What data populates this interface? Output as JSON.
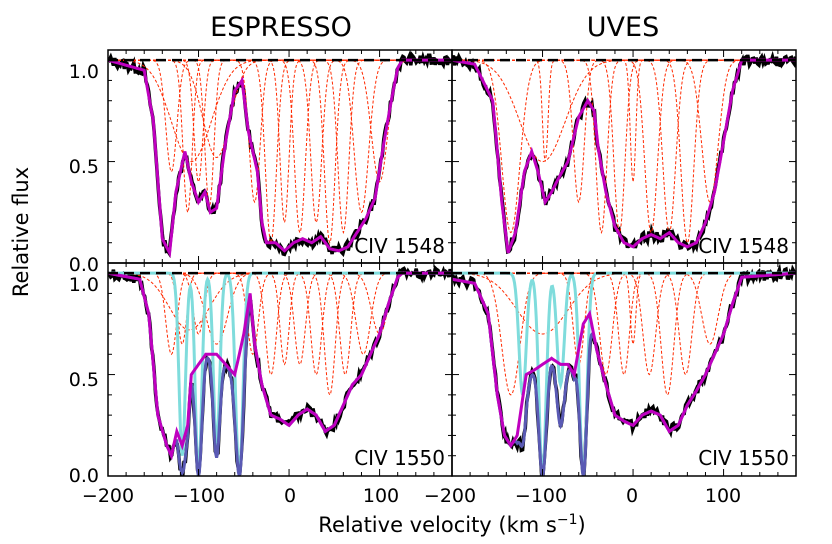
{
  "figure": {
    "ylabel": "Relative flux",
    "xlabel": "Relative velocity (km s",
    "xlabel_sup": "−1",
    "xlabel_close": ")",
    "column_titles": [
      "ESPRESSO",
      "UVES"
    ],
    "xticks_left": [
      "−200",
      "−100",
      "0",
      "100"
    ],
    "xticks_right": [
      "−200",
      "−100",
      "0",
      "100"
    ],
    "yticks_top": [
      "0.0",
      "0.5",
      "1.0"
    ],
    "yticks_bottom": [
      "0.0",
      "0.5",
      "1.0"
    ]
  },
  "chart_data": [
    {
      "type": "line",
      "instrument": "ESPRESSO",
      "transition": "CIV 1548",
      "label": "CIV 1548",
      "xlim": [
        -200,
        180
      ],
      "ylim": [
        0,
        1.05
      ],
      "model": [
        [
          -200,
          1
        ],
        [
          -160,
          0.95
        ],
        [
          -150,
          0.7
        ],
        [
          -140,
          0.12
        ],
        [
          -132,
          0.05
        ],
        [
          -125,
          0.35
        ],
        [
          -115,
          0.55
        ],
        [
          -108,
          0.4
        ],
        [
          -100,
          0.3
        ],
        [
          -93,
          0.35
        ],
        [
          -87,
          0.25
        ],
        [
          -80,
          0.27
        ],
        [
          -70,
          0.6
        ],
        [
          -60,
          0.85
        ],
        [
          -52,
          0.9
        ],
        [
          -45,
          0.65
        ],
        [
          -40,
          0.55
        ],
        [
          -35,
          0.45
        ],
        [
          -30,
          0.2
        ],
        [
          -25,
          0.1
        ],
        [
          -15,
          0.1
        ],
        [
          -5,
          0.06
        ],
        [
          5,
          0.1
        ],
        [
          15,
          0.12
        ],
        [
          25,
          0.1
        ],
        [
          35,
          0.13
        ],
        [
          45,
          0.07
        ],
        [
          55,
          0.06
        ],
        [
          65,
          0.08
        ],
        [
          75,
          0.15
        ],
        [
          85,
          0.22
        ],
        [
          95,
          0.32
        ],
        [
          105,
          0.6
        ],
        [
          115,
          0.85
        ],
        [
          120,
          0.96
        ],
        [
          125,
          1
        ],
        [
          180,
          1
        ]
      ],
      "components": [
        {
          "center": -108,
          "width": 22,
          "depth": 0.5
        },
        {
          "center": -80,
          "width": 15,
          "depth": 0.48
        },
        {
          "center": -130,
          "width": 6,
          "depth": 0.55
        },
        {
          "center": -112,
          "width": 5,
          "depth": 0.75
        },
        {
          "center": -100,
          "width": 5,
          "depth": 0.6
        },
        {
          "center": -88,
          "width": 5,
          "depth": 0.72
        },
        {
          "center": -38,
          "width": 6,
          "depth": 0.7
        },
        {
          "center": -20,
          "width": 6,
          "depth": 0.9
        },
        {
          "center": -5,
          "width": 5,
          "depth": 0.8
        },
        {
          "center": 12,
          "width": 6,
          "depth": 0.85
        },
        {
          "center": 30,
          "width": 6,
          "depth": 0.8
        },
        {
          "center": 45,
          "width": 6,
          "depth": 0.9
        },
        {
          "center": 60,
          "width": 6,
          "depth": 0.85
        },
        {
          "center": 80,
          "width": 8,
          "depth": 0.75
        },
        {
          "center": 100,
          "width": 9,
          "depth": 0.6
        }
      ],
      "overlap": []
    },
    {
      "type": "line",
      "instrument": "UVES",
      "transition": "CIV 1548",
      "label": "CIV 1548",
      "xlim": [
        -200,
        180
      ],
      "ylim": [
        0,
        1.05
      ],
      "model": [
        [
          -200,
          1
        ],
        [
          -175,
          0.98
        ],
        [
          -155,
          0.8
        ],
        [
          -145,
          0.3
        ],
        [
          -138,
          0.05
        ],
        [
          -130,
          0.15
        ],
        [
          -120,
          0.45
        ],
        [
          -112,
          0.55
        ],
        [
          -105,
          0.45
        ],
        [
          -97,
          0.3
        ],
        [
          -90,
          0.35
        ],
        [
          -82,
          0.42
        ],
        [
          -72,
          0.5
        ],
        [
          -60,
          0.72
        ],
        [
          -50,
          0.8
        ],
        [
          -43,
          0.75
        ],
        [
          -38,
          0.55
        ],
        [
          -30,
          0.35
        ],
        [
          -20,
          0.18
        ],
        [
          -10,
          0.1
        ],
        [
          0,
          0.08
        ],
        [
          10,
          0.12
        ],
        [
          20,
          0.14
        ],
        [
          30,
          0.12
        ],
        [
          40,
          0.15
        ],
        [
          50,
          0.1
        ],
        [
          60,
          0.08
        ],
        [
          70,
          0.1
        ],
        [
          80,
          0.2
        ],
        [
          90,
          0.35
        ],
        [
          100,
          0.6
        ],
        [
          110,
          0.85
        ],
        [
          120,
          1
        ],
        [
          180,
          1
        ]
      ],
      "components": [
        {
          "center": -135,
          "width": 10,
          "depth": 0.85
        },
        {
          "center": -100,
          "width": 25,
          "depth": 0.5
        },
        {
          "center": -97,
          "width": 3,
          "depth": 0.5
        },
        {
          "center": -60,
          "width": 6,
          "depth": 0.7
        },
        {
          "center": -35,
          "width": 6,
          "depth": 0.85
        },
        {
          "center": -15,
          "width": 6,
          "depth": 0.85
        },
        {
          "center": 0,
          "width": 3,
          "depth": 0.6
        },
        {
          "center": 20,
          "width": 7,
          "depth": 0.85
        },
        {
          "center": 40,
          "width": 7,
          "depth": 0.85
        },
        {
          "center": 60,
          "width": 7,
          "depth": 0.9
        },
        {
          "center": 85,
          "width": 9,
          "depth": 0.7
        }
      ],
      "overlap": []
    },
    {
      "type": "line",
      "instrument": "ESPRESSO",
      "transition": "CIV 1550",
      "label": "CIV 1550",
      "xlim": [
        -200,
        180
      ],
      "ylim": [
        0,
        1.05
      ],
      "model": [
        [
          -200,
          1
        ],
        [
          -165,
          0.97
        ],
        [
          -155,
          0.8
        ],
        [
          -145,
          0.3
        ],
        [
          -135,
          0.15
        ],
        [
          -130,
          0.1
        ],
        [
          -124,
          0.22
        ],
        [
          -118,
          0.15
        ],
        [
          -112,
          0.25
        ],
        [
          -108,
          0.5
        ],
        [
          -100,
          0.55
        ],
        [
          -92,
          0.6
        ],
        [
          -80,
          0.6
        ],
        [
          -70,
          0.55
        ],
        [
          -60,
          0.5
        ],
        [
          -50,
          0.7
        ],
        [
          -43,
          0.9
        ],
        [
          -38,
          0.65
        ],
        [
          -30,
          0.45
        ],
        [
          -20,
          0.3
        ],
        [
          -10,
          0.28
        ],
        [
          0,
          0.25
        ],
        [
          10,
          0.3
        ],
        [
          20,
          0.33
        ],
        [
          30,
          0.3
        ],
        [
          40,
          0.22
        ],
        [
          50,
          0.25
        ],
        [
          60,
          0.35
        ],
        [
          70,
          0.45
        ],
        [
          80,
          0.5
        ],
        [
          90,
          0.6
        ],
        [
          100,
          0.7
        ],
        [
          110,
          0.85
        ],
        [
          120,
          0.98
        ],
        [
          125,
          1
        ],
        [
          180,
          1
        ]
      ],
      "components": [
        {
          "center": -110,
          "width": 22,
          "depth": 0.28
        },
        {
          "center": -130,
          "width": 6,
          "depth": 0.4
        },
        {
          "center": -118,
          "width": 5,
          "depth": 0.35
        },
        {
          "center": -100,
          "width": 6,
          "depth": 0.3
        },
        {
          "center": -80,
          "width": 12,
          "depth": 0.35
        },
        {
          "center": -40,
          "width": 6,
          "depth": 0.4
        },
        {
          "center": -20,
          "width": 6,
          "depth": 0.5
        },
        {
          "center": -5,
          "width": 5,
          "depth": 0.45
        },
        {
          "center": 12,
          "width": 6,
          "depth": 0.45
        },
        {
          "center": 30,
          "width": 6,
          "depth": 0.5
        },
        {
          "center": 45,
          "width": 6,
          "depth": 0.6
        },
        {
          "center": 62,
          "width": 6,
          "depth": 0.5
        },
        {
          "center": 82,
          "width": 8,
          "depth": 0.4
        },
        {
          "center": 100,
          "width": 9,
          "depth": 0.3
        }
      ],
      "overlap": [
        {
          "center": -118,
          "width": 3.5,
          "depth": 0.9
        },
        {
          "center": -100,
          "width": 3.5,
          "depth": 1.0
        },
        {
          "center": -80,
          "width": 3.5,
          "depth": 0.85
        },
        {
          "center": -55,
          "width": 4,
          "depth": 1.0
        }
      ]
    },
    {
      "type": "line",
      "instrument": "UVES",
      "transition": "CIV 1550",
      "label": "CIV 1550",
      "xlim": [
        -200,
        180
      ],
      "ylim": [
        0,
        1.05
      ],
      "model": [
        [
          -200,
          0.97
        ],
        [
          -175,
          0.95
        ],
        [
          -160,
          0.8
        ],
        [
          -150,
          0.4
        ],
        [
          -142,
          0.2
        ],
        [
          -135,
          0.15
        ],
        [
          -128,
          0.2
        ],
        [
          -118,
          0.5
        ],
        [
          -110,
          0.52
        ],
        [
          -100,
          0.55
        ],
        [
          -90,
          0.58
        ],
        [
          -80,
          0.55
        ],
        [
          -72,
          0.55
        ],
        [
          -65,
          0.5
        ],
        [
          -55,
          0.75
        ],
        [
          -48,
          0.8
        ],
        [
          -40,
          0.62
        ],
        [
          -30,
          0.45
        ],
        [
          -20,
          0.3
        ],
        [
          -10,
          0.27
        ],
        [
          0,
          0.25
        ],
        [
          10,
          0.3
        ],
        [
          20,
          0.32
        ],
        [
          30,
          0.3
        ],
        [
          40,
          0.22
        ],
        [
          50,
          0.25
        ],
        [
          60,
          0.35
        ],
        [
          70,
          0.42
        ],
        [
          80,
          0.5
        ],
        [
          90,
          0.6
        ],
        [
          100,
          0.7
        ],
        [
          110,
          0.85
        ],
        [
          120,
          0.98
        ],
        [
          180,
          1
        ]
      ],
      "components": [
        {
          "center": -100,
          "width": 28,
          "depth": 0.3
        },
        {
          "center": -135,
          "width": 10,
          "depth": 0.6
        },
        {
          "center": -60,
          "width": 6,
          "depth": 0.45
        },
        {
          "center": -30,
          "width": 7,
          "depth": 0.5
        },
        {
          "center": -10,
          "width": 6,
          "depth": 0.5
        },
        {
          "center": 0,
          "width": 3,
          "depth": 0.35
        },
        {
          "center": 18,
          "width": 7,
          "depth": 0.5
        },
        {
          "center": 38,
          "width": 7,
          "depth": 0.6
        },
        {
          "center": 58,
          "width": 7,
          "depth": 0.5
        },
        {
          "center": 85,
          "width": 9,
          "depth": 0.35
        }
      ],
      "overlap": [
        {
          "center": -122,
          "width": 4,
          "depth": 0.6
        },
        {
          "center": -100,
          "width": 4,
          "depth": 1.0
        },
        {
          "center": -80,
          "width": 4,
          "depth": 0.55
        },
        {
          "center": -55,
          "width": 4,
          "depth": 1.0
        }
      ]
    }
  ],
  "colors": {
    "data": "#000000",
    "model": "#bf00bf",
    "components": "#ff2a00",
    "overlap": "#7fdcdc",
    "overlap_model": "#5a5ab4",
    "continuum": "#000000"
  }
}
